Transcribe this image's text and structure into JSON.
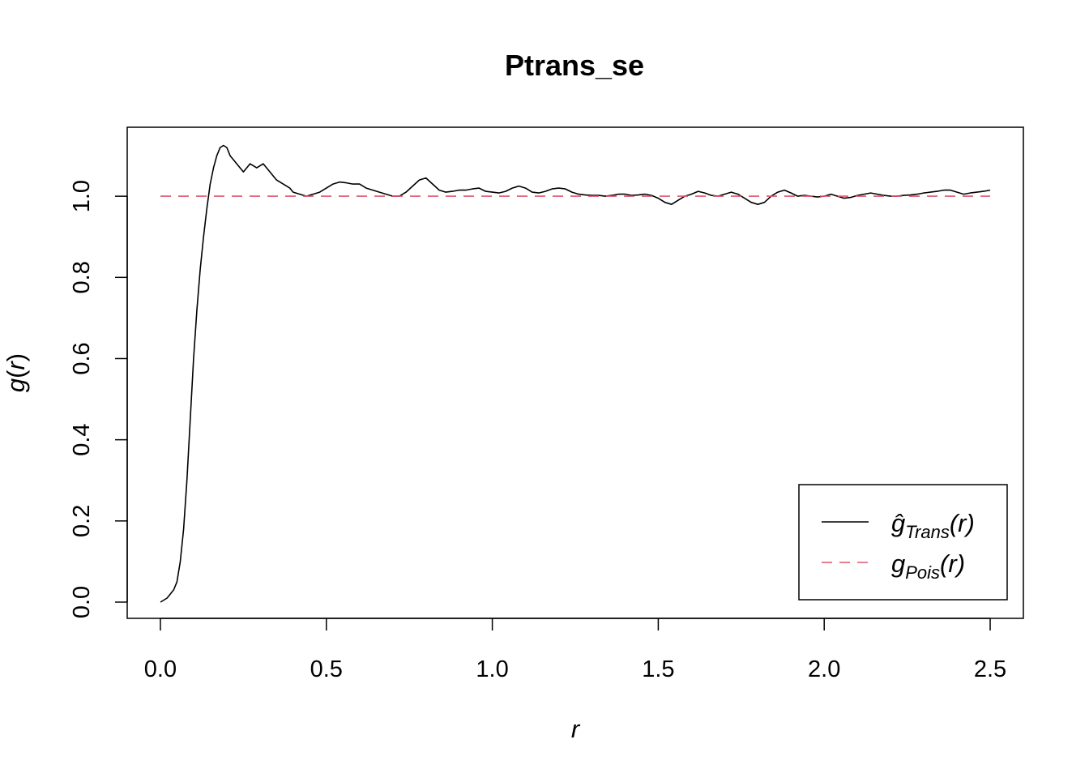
{
  "chart_data": {
    "type": "line",
    "title": "Ptrans_se",
    "xlabel": "r",
    "ylabel": {
      "main": "g",
      "open": "(",
      "var": "r",
      "close": ")"
    },
    "xlim": [
      -0.1,
      2.6
    ],
    "ylim": [
      -0.04,
      1.17
    ],
    "xticks": [
      0.0,
      0.5,
      1.0,
      1.5,
      2.0,
      2.5
    ],
    "xtick_labels": [
      "0.0",
      "0.5",
      "1.0",
      "1.5",
      "2.0",
      "2.5"
    ],
    "yticks": [
      0.0,
      0.2,
      0.4,
      0.6,
      0.8,
      1.0
    ],
    "ytick_labels": [
      "0.0",
      "0.2",
      "0.4",
      "0.6",
      "0.8",
      "1.0"
    ],
    "grid": false,
    "legend_position": "bottom-right",
    "legend": [
      {
        "base": "ĝ",
        "sub": "Trans",
        "arg": "(r)",
        "color": "#000000",
        "dash": "solid"
      },
      {
        "base": "g",
        "sub": "Pois",
        "arg": "(r)",
        "color": "#DF536B",
        "dash": "dashed"
      }
    ],
    "series": [
      {
        "color": "#000000",
        "dash": "solid",
        "x": [
          0.0,
          0.02,
          0.04,
          0.05,
          0.06,
          0.07,
          0.08,
          0.09,
          0.1,
          0.11,
          0.12,
          0.13,
          0.14,
          0.15,
          0.16,
          0.17,
          0.18,
          0.19,
          0.2,
          0.21,
          0.22,
          0.23,
          0.24,
          0.25,
          0.26,
          0.27,
          0.28,
          0.29,
          0.3,
          0.31,
          0.32,
          0.33,
          0.34,
          0.35,
          0.36,
          0.37,
          0.38,
          0.39,
          0.4,
          0.42,
          0.44,
          0.46,
          0.48,
          0.5,
          0.52,
          0.54,
          0.56,
          0.58,
          0.6,
          0.62,
          0.64,
          0.66,
          0.68,
          0.7,
          0.72,
          0.74,
          0.76,
          0.78,
          0.8,
          0.82,
          0.84,
          0.86,
          0.88,
          0.9,
          0.92,
          0.94,
          0.96,
          0.98,
          1.0,
          1.02,
          1.04,
          1.06,
          1.08,
          1.1,
          1.12,
          1.14,
          1.16,
          1.18,
          1.2,
          1.22,
          1.24,
          1.26,
          1.28,
          1.3,
          1.32,
          1.34,
          1.36,
          1.38,
          1.4,
          1.42,
          1.44,
          1.46,
          1.48,
          1.5,
          1.52,
          1.54,
          1.56,
          1.58,
          1.6,
          1.62,
          1.64,
          1.66,
          1.68,
          1.7,
          1.72,
          1.74,
          1.76,
          1.78,
          1.8,
          1.82,
          1.84,
          1.86,
          1.88,
          1.9,
          1.92,
          1.94,
          1.96,
          1.98,
          2.0,
          2.02,
          2.04,
          2.06,
          2.08,
          2.1,
          2.12,
          2.14,
          2.16,
          2.18,
          2.2,
          2.22,
          2.24,
          2.26,
          2.28,
          2.3,
          2.32,
          2.34,
          2.36,
          2.38,
          2.4,
          2.42,
          2.44,
          2.46,
          2.48,
          2.5
        ],
        "y": [
          0.0,
          0.01,
          0.03,
          0.05,
          0.1,
          0.18,
          0.3,
          0.45,
          0.6,
          0.72,
          0.82,
          0.9,
          0.97,
          1.03,
          1.07,
          1.1,
          1.12,
          1.125,
          1.12,
          1.1,
          1.09,
          1.08,
          1.07,
          1.06,
          1.07,
          1.08,
          1.075,
          1.07,
          1.075,
          1.08,
          1.07,
          1.06,
          1.05,
          1.04,
          1.035,
          1.03,
          1.025,
          1.02,
          1.01,
          1.005,
          1.0,
          1.005,
          1.01,
          1.02,
          1.03,
          1.035,
          1.033,
          1.03,
          1.03,
          1.02,
          1.015,
          1.01,
          1.005,
          1.0,
          1.0,
          1.01,
          1.025,
          1.04,
          1.045,
          1.03,
          1.015,
          1.01,
          1.012,
          1.015,
          1.015,
          1.018,
          1.02,
          1.012,
          1.01,
          1.008,
          1.012,
          1.02,
          1.025,
          1.02,
          1.01,
          1.008,
          1.012,
          1.018,
          1.02,
          1.018,
          1.01,
          1.005,
          1.003,
          1.002,
          1.002,
          1.0,
          1.002,
          1.005,
          1.005,
          1.002,
          1.003,
          1.005,
          1.002,
          0.995,
          0.985,
          0.98,
          0.99,
          1.0,
          1.005,
          1.012,
          1.008,
          1.002,
          1.0,
          1.005,
          1.01,
          1.005,
          0.995,
          0.985,
          0.98,
          0.985,
          1.0,
          1.01,
          1.015,
          1.008,
          1.0,
          1.002,
          1.0,
          0.998,
          1.0,
          1.005,
          1.0,
          0.995,
          0.997,
          1.002,
          1.005,
          1.008,
          1.005,
          1.002,
          1.0,
          1.0,
          1.002,
          1.003,
          1.005,
          1.008,
          1.01,
          1.012,
          1.015,
          1.015,
          1.01,
          1.005,
          1.008,
          1.01,
          1.012,
          1.015
        ]
      },
      {
        "color": "#DF536B",
        "dash": "dashed",
        "x": [
          0.0,
          2.5
        ],
        "y": [
          1.0,
          1.0
        ]
      }
    ]
  }
}
